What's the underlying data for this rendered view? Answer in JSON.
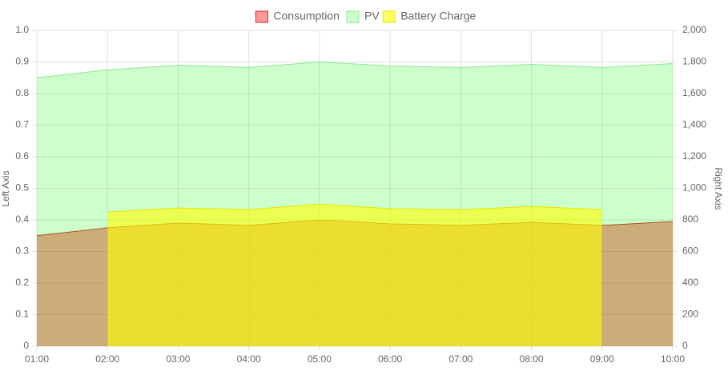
{
  "chart_data": {
    "type": "area",
    "categories": [
      "01:00",
      "02:00",
      "03:00",
      "04:00",
      "05:00",
      "06:00",
      "07:00",
      "08:00",
      "09:00",
      "10:00"
    ],
    "series": [
      {
        "name": "Consumption",
        "color": "rgba(255,0,0,0.4)",
        "border": "#d62a1e",
        "axis": "y2",
        "values": [
          700,
          750,
          780,
          765,
          800,
          775,
          765,
          785,
          765,
          790
        ]
      },
      {
        "name": "PV",
        "color": "rgba(0,255,0,0.2)",
        "border": "#8fe88f",
        "axis": "y2",
        "values": [
          1700,
          1750,
          1780,
          1765,
          1800,
          1775,
          1765,
          1785,
          1765,
          1790
        ]
      },
      {
        "name": "Battery Charge",
        "color": "rgba(255,255,0,0.6)",
        "border": "#e6e600",
        "axis": "y2",
        "values": [
          null,
          850,
          875,
          865,
          900,
          870,
          865,
          885,
          865,
          null
        ]
      }
    ],
    "ylabel": "Left Axis",
    "y2label": "Right Axis",
    "ylim": [
      0,
      1
    ],
    "yticks": [
      0,
      0.1,
      0.2,
      0.3,
      0.4,
      0.5,
      0.6,
      0.7,
      0.8,
      0.9,
      {
        "value": 1,
        "label": "1.0"
      }
    ],
    "y2lim": [
      0,
      2000
    ],
    "y2ticks": [
      0,
      200,
      400,
      600,
      800,
      {
        "value": 1000,
        "label": "1,000"
      },
      {
        "value": 1200,
        "label": "1,200"
      },
      {
        "value": 1400,
        "label": "1,400"
      },
      {
        "value": 1600,
        "label": "1,600"
      },
      {
        "value": 1800,
        "label": "1,800"
      },
      {
        "value": 2000,
        "label": "2,000"
      }
    ],
    "grid": true,
    "legend": "top"
  }
}
